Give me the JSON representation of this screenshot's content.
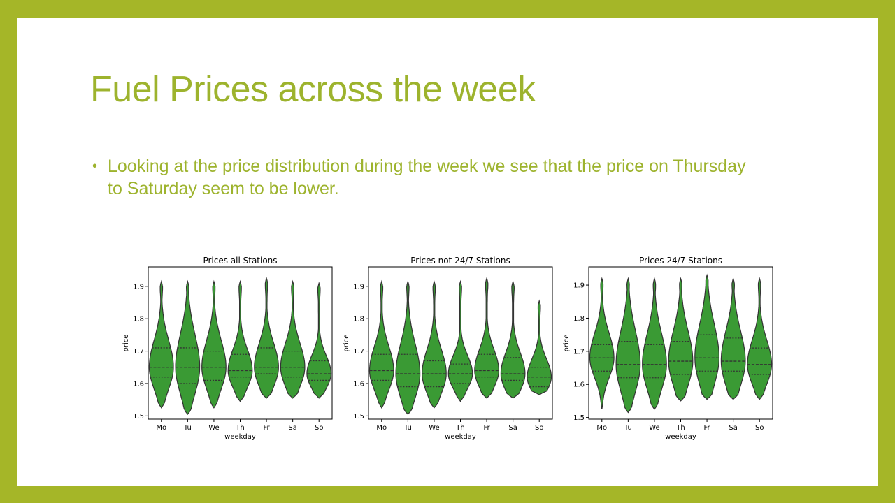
{
  "slide": {
    "title": "Fuel Prices across the week",
    "bullets": [
      "Looking at the price distribution during the week we see that the price on Thursday to Saturday seem to be  lower."
    ]
  },
  "colors": {
    "frame": "#a5b628",
    "title": "#9db32d",
    "violin_fill": "#3a9a34",
    "violin_edge": "#333333"
  },
  "chart_data": [
    {
      "type": "violin",
      "title": "Prices all Stations",
      "xlabel": "weekday",
      "ylabel": "price",
      "categories": [
        "Mo",
        "Tu",
        "We",
        "Th",
        "Fr",
        "Sa",
        "So"
      ],
      "ylim": [
        1.49,
        1.96
      ],
      "yticks": [
        "1.5",
        "1.6",
        "1.7",
        "1.8",
        "1.9"
      ],
      "series": [
        {
          "min": 1.525,
          "max": 1.915,
          "q1": 1.62,
          "median": 1.65,
          "q3": 1.71
        },
        {
          "min": 1.505,
          "max": 1.915,
          "q1": 1.6,
          "median": 1.65,
          "q3": 1.71
        },
        {
          "min": 1.525,
          "max": 1.915,
          "q1": 1.61,
          "median": 1.65,
          "q3": 1.7
        },
        {
          "min": 1.545,
          "max": 1.915,
          "q1": 1.62,
          "median": 1.64,
          "q3": 1.69
        },
        {
          "min": 1.555,
          "max": 1.925,
          "q1": 1.63,
          "median": 1.65,
          "q3": 1.71
        },
        {
          "min": 1.555,
          "max": 1.915,
          "q1": 1.62,
          "median": 1.65,
          "q3": 1.7
        },
        {
          "min": 1.555,
          "max": 1.91,
          "q1": 1.61,
          "median": 1.63,
          "q3": 1.67
        }
      ]
    },
    {
      "type": "violin",
      "title": "Prices not 24/7 Stations",
      "xlabel": "weekday",
      "ylabel": "price",
      "categories": [
        "Mo",
        "Tu",
        "We",
        "Th",
        "Fr",
        "Sa",
        "So"
      ],
      "ylim": [
        1.49,
        1.96
      ],
      "yticks": [
        "1.5",
        "1.6",
        "1.7",
        "1.8",
        "1.9"
      ],
      "series": [
        {
          "min": 1.525,
          "max": 1.915,
          "q1": 1.61,
          "median": 1.64,
          "q3": 1.69
        },
        {
          "min": 1.505,
          "max": 1.915,
          "q1": 1.59,
          "median": 1.63,
          "q3": 1.69
        },
        {
          "min": 1.525,
          "max": 1.915,
          "q1": 1.59,
          "median": 1.63,
          "q3": 1.67
        },
        {
          "min": 1.545,
          "max": 1.915,
          "q1": 1.6,
          "median": 1.63,
          "q3": 1.66
        },
        {
          "min": 1.555,
          "max": 1.925,
          "q1": 1.62,
          "median": 1.64,
          "q3": 1.69
        },
        {
          "min": 1.555,
          "max": 1.915,
          "q1": 1.61,
          "median": 1.63,
          "q3": 1.68
        },
        {
          "min": 1.565,
          "max": 1.855,
          "q1": 1.59,
          "median": 1.62,
          "q3": 1.65
        }
      ]
    },
    {
      "type": "violin",
      "title": "Prices 24/7 Stations",
      "xlabel": "weekday",
      "ylabel": "price",
      "categories": [
        "Mo",
        "Tu",
        "We",
        "Th",
        "Fr",
        "Sa",
        "So"
      ],
      "ylim": [
        1.495,
        1.955
      ],
      "yticks": [
        "1.5",
        "1.6",
        "1.7",
        "1.8",
        "1.9"
      ],
      "series": [
        {
          "min": 1.525,
          "max": 1.92,
          "q1": 1.64,
          "median": 1.68,
          "q3": 1.72
        },
        {
          "min": 1.515,
          "max": 1.92,
          "q1": 1.62,
          "median": 1.66,
          "q3": 1.73
        },
        {
          "min": 1.525,
          "max": 1.92,
          "q1": 1.62,
          "median": 1.66,
          "q3": 1.72
        },
        {
          "min": 1.55,
          "max": 1.92,
          "q1": 1.63,
          "median": 1.67,
          "q3": 1.73
        },
        {
          "min": 1.555,
          "max": 1.93,
          "q1": 1.64,
          "median": 1.68,
          "q3": 1.75
        },
        {
          "min": 1.555,
          "max": 1.92,
          "q1": 1.64,
          "median": 1.67,
          "q3": 1.74
        },
        {
          "min": 1.555,
          "max": 1.92,
          "q1": 1.63,
          "median": 1.66,
          "q3": 1.71
        }
      ]
    }
  ]
}
